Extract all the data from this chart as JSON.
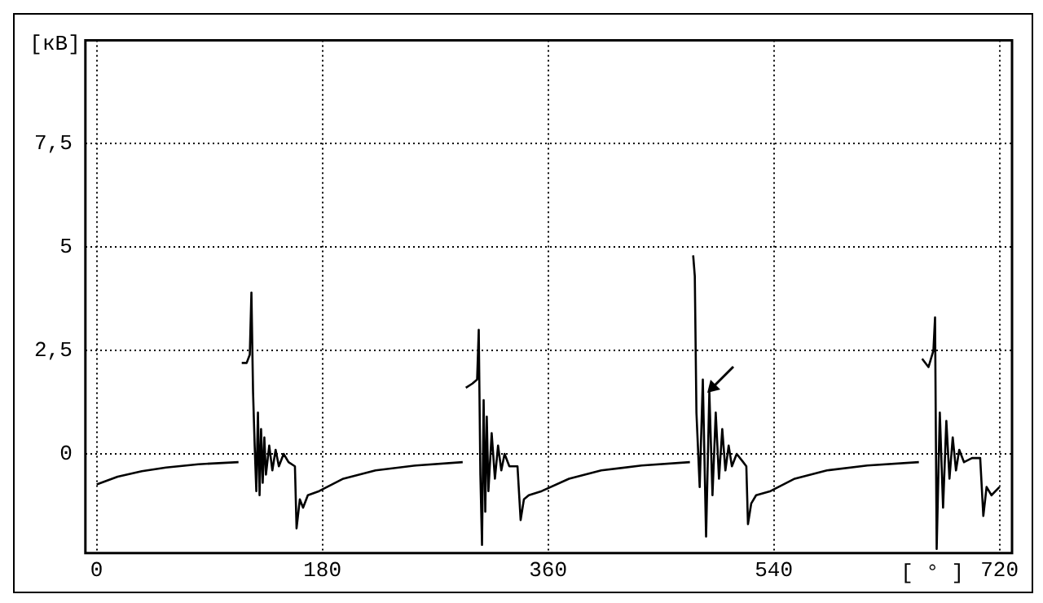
{
  "chart_data": {
    "type": "line",
    "xlabel": "[ ° ]",
    "ylabel": "[кВ]",
    "x": [
      0,
      16.7,
      36,
      55.3,
      81,
      113.1,
      114.4,
      115.7,
      119.6,
      122.1,
      123.4,
      124.7,
      126,
      127.3,
      128.6,
      129.9,
      131.1,
      132.4,
      133.7,
      135,
      137.6,
      140.1,
      142.7,
      145.3,
      149.1,
      153,
      158.1,
      159.4,
      162,
      164.6,
      168.4,
      177.4,
      196.7,
      222.4,
      254.6,
      291.9,
      293.1,
      294.4,
      299.6,
      303.4,
      304.7,
      306,
      307.3,
      308.6,
      309.9,
      311.1,
      312.4,
      315,
      317.6,
      320.1,
      322.7,
      325.3,
      329.1,
      335.6,
      338.1,
      340.7,
      344.6,
      354.9,
      376.7,
      402.4,
      434.6,
      473.1,
      474.4,
      475.7,
      477,
      478.3,
      480.9,
      483.4,
      486,
      488.6,
      491.1,
      493.7,
      496.3,
      498.9,
      501.4,
      504,
      506.6,
      510.4,
      515.6,
      518.1,
      519.4,
      522,
      525.9,
      537.4,
      556.7,
      582.4,
      614.6,
      655.7,
      657,
      658.3,
      663.4,
      667.3,
      668.6,
      669.9,
      672.4,
      675,
      677.6,
      680.1,
      682.7,
      685.3,
      687.9,
      691.7,
      698.1,
      704.6,
      707.1,
      709.7,
      713.6,
      720
    ],
    "values": [
      -0.74,
      -0.55,
      -0.42,
      -0.33,
      -0.25,
      -0.2,
      null,
      2.2,
      2.2,
      2.4,
      3.9,
      1.5,
      0.2,
      -0.9,
      1.0,
      -1.0,
      0.6,
      -0.7,
      0.4,
      -0.5,
      0.2,
      -0.4,
      0.1,
      -0.3,
      0.0,
      -0.2,
      -0.3,
      -1.8,
      -1.1,
      -1.3,
      -1.0,
      -0.9,
      -0.6,
      -0.4,
      -0.28,
      -0.2,
      null,
      1.6,
      1.7,
      1.8,
      3.0,
      -0.5,
      -2.2,
      1.3,
      -1.4,
      0.9,
      -0.9,
      0.5,
      -0.6,
      0.2,
      -0.4,
      0.0,
      -0.3,
      -0.3,
      -1.6,
      -1.1,
      -1.0,
      -0.9,
      -0.6,
      -0.4,
      -0.28,
      -0.2,
      null,
      4.8,
      4.3,
      1.0,
      -0.8,
      1.8,
      -2.0,
      1.5,
      -1.0,
      1.0,
      -0.6,
      0.6,
      -0.4,
      0.2,
      -0.3,
      0.0,
      -0.2,
      -0.3,
      -1.7,
      -1.2,
      -1.0,
      -0.9,
      -0.6,
      -0.4,
      -0.28,
      -0.2,
      null,
      2.3,
      2.1,
      2.5,
      3.3,
      -2.3,
      1.0,
      -1.3,
      0.8,
      -0.6,
      0.4,
      -0.4,
      0.1,
      -0.2,
      -0.1,
      -0.1,
      -1.5,
      -0.8,
      -1.0,
      -0.8
    ],
    "color": "#000000",
    "xlim": [
      -9,
      730
    ],
    "ylim": [
      -2.4,
      10
    ],
    "xticks": [
      0,
      180,
      360,
      540,
      720
    ],
    "yticks": [
      0,
      {
        "value": 2.5,
        "label": "2,5"
      },
      5,
      {
        "value": 7.5,
        "label": "7,5"
      }
    ],
    "grid": true,
    "marker": "none",
    "line_style": "solid",
    "legend": false
  }
}
